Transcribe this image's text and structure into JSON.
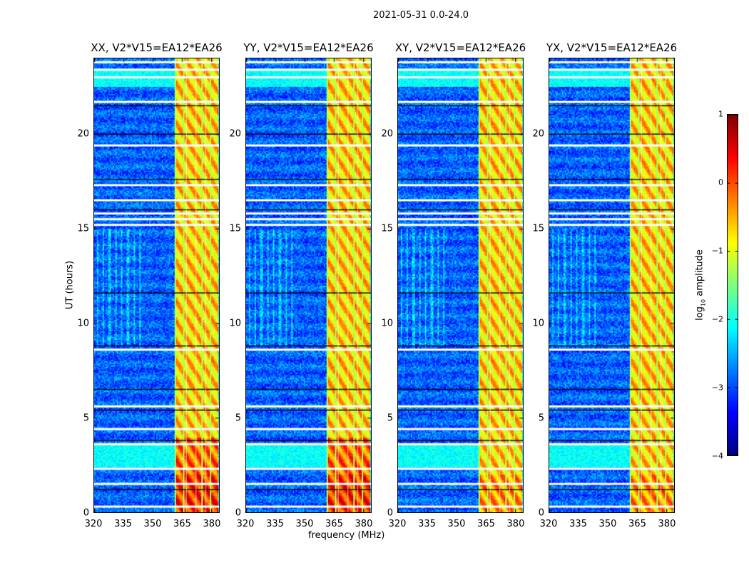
{
  "chart_data": {
    "type": "heatmap",
    "title": "2021-05-31 0.0-24.0",
    "panels": [
      {
        "title": "XX, V2*V15=EA12*EA26"
      },
      {
        "title": "YY, V2*V15=EA12*EA26"
      },
      {
        "title": "XY, V2*V15=EA12*EA26"
      },
      {
        "title": "YX, V2*V15=EA12*EA26"
      }
    ],
    "xlabel": "frequency (MHz)",
    "ylabel": "UT (hours)",
    "xlim": [
      320,
      384
    ],
    "ylim": [
      0,
      24
    ],
    "xticks": [
      "320",
      "335",
      "350",
      "365",
      "380"
    ],
    "xtick_values": [
      320,
      335,
      350,
      365,
      380
    ],
    "yticks": [
      "0",
      "5",
      "10",
      "15",
      "20"
    ],
    "ytick_values": [
      0,
      5,
      10,
      15,
      20
    ],
    "colormap": "jet",
    "colorbar": {
      "label_prefix": "log",
      "label_sub": "10",
      "label_suffix": " amplitude",
      "range": [
        -4,
        1
      ],
      "ticks": [
        "1",
        "0",
        "−1",
        "−2",
        "−3",
        "−4"
      ],
      "tick_values": [
        1,
        0,
        -1,
        -2,
        -3,
        -4
      ]
    },
    "bright_band_mhz": [
      361,
      383
    ],
    "flagged_gap_hours": [
      0.3,
      1.5,
      2.3,
      3.6,
      4.4,
      5.6,
      8.6,
      15.2,
      15.5,
      15.8,
      16.5,
      17.3,
      19.4,
      21.7,
      23.0,
      23.4,
      23.8
    ],
    "black_line_hours": [
      1.2,
      3.8,
      5.4,
      6.5,
      8.8,
      11.6,
      16.0,
      17.6,
      20.0,
      21.5
    ]
  }
}
